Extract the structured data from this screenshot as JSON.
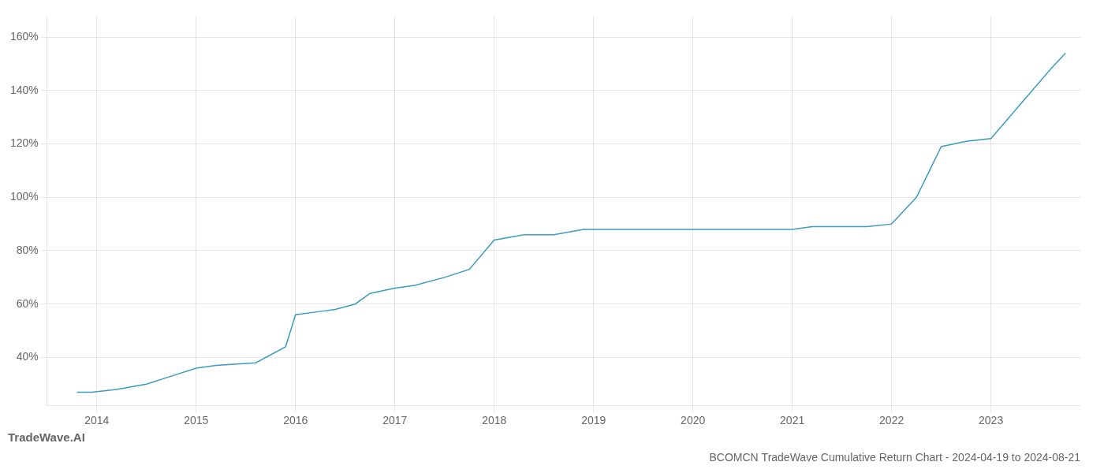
{
  "chart_data": {
    "type": "line",
    "title": "BCOMCN TradeWave Cumulative Return Chart - 2024-04-19 to 2024-08-21",
    "annotations": [
      "TradeWave.AI"
    ],
    "x": [
      2013.8,
      2013.95,
      2014.2,
      2014.5,
      2014.75,
      2015.0,
      2015.2,
      2015.6,
      2015.9,
      2016.0,
      2016.2,
      2016.4,
      2016.6,
      2016.75,
      2017.0,
      2017.2,
      2017.5,
      2017.75,
      2018.0,
      2018.3,
      2018.6,
      2018.9,
      2019.0,
      2019.25,
      2019.5,
      2019.75,
      2020.0,
      2020.25,
      2020.5,
      2020.75,
      2021.0,
      2021.2,
      2021.5,
      2021.75,
      2022.0,
      2022.25,
      2022.5,
      2022.75,
      2023.0,
      2023.3,
      2023.6,
      2023.75
    ],
    "values": [
      27,
      27,
      28,
      30,
      33,
      36,
      37,
      38,
      44,
      56,
      57,
      58,
      60,
      64,
      66,
      67,
      70,
      73,
      84,
      86,
      86,
      88,
      88,
      88,
      88,
      88,
      88,
      88,
      88,
      88,
      88,
      89,
      89,
      89,
      90,
      100,
      119,
      121,
      122,
      135,
      148,
      154
    ],
    "color": "#3a9cc0",
    "xlim": [
      2013.5,
      2023.9
    ],
    "xticks": [
      2014,
      2015,
      2016,
      2017,
      2018,
      2019,
      2020,
      2021,
      2022,
      2023
    ],
    "ylim": [
      22,
      168
    ],
    "yticks": [
      {
        "value": 40,
        "label": "40%"
      },
      {
        "value": 60,
        "label": "60%"
      },
      {
        "value": 80,
        "label": "80%"
      },
      {
        "value": 100,
        "label": "100%"
      },
      {
        "value": 120,
        "label": "120%"
      },
      {
        "value": 140,
        "label": "140%"
      },
      {
        "value": 160,
        "label": "160%"
      }
    ],
    "grid": true
  }
}
